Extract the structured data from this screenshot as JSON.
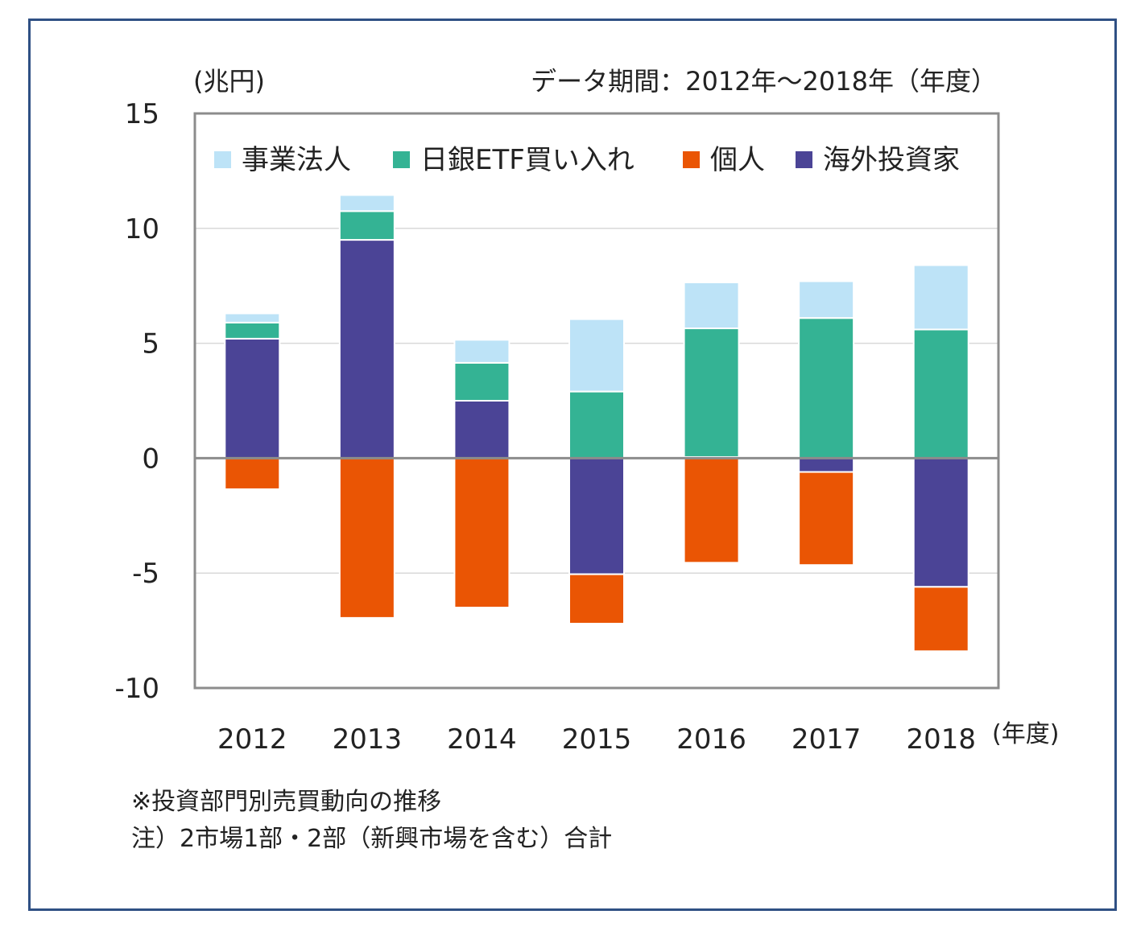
{
  "chart_data": {
    "type": "bar",
    "stacked": true,
    "title": "データ期間：2012年～2018年（年度）",
    "ylabel": "(兆円)",
    "xlabel": "(年度)",
    "categories": [
      "2012",
      "2013",
      "2014",
      "2015",
      "2016",
      "2017",
      "2018"
    ],
    "ylim": [
      -10,
      15
    ],
    "yticks": [
      15,
      10,
      5,
      0,
      -5,
      -10
    ],
    "grid": true,
    "legend_position": "top-inside",
    "series": [
      {
        "name": "事業法人",
        "color": "#bde3f7",
        "values": [
          0.4,
          0.7,
          1.0,
          3.15,
          2.0,
          1.6,
          2.8
        ]
      },
      {
        "name": "日銀ETF買い入れ",
        "color": "#34b394",
        "values": [
          0.7,
          1.25,
          1.65,
          2.9,
          5.6,
          6.1,
          5.6
        ]
      },
      {
        "name": "個人",
        "color": "#ea5504",
        "values": [
          -1.35,
          -6.95,
          -6.5,
          -2.15,
          -4.55,
          -4.05,
          -2.8
        ]
      },
      {
        "name": "海外投資家",
        "color": "#4b4496",
        "values": [
          5.2,
          9.5,
          2.5,
          -5.05,
          0.05,
          -0.6,
          -5.6
        ]
      }
    ],
    "stack_order_positive": [
      "海外投資家",
      "日銀ETF買い入れ",
      "事業法人",
      "個人"
    ],
    "stack_order_negative": [
      "海外投資家",
      "個人",
      "日銀ETF買い入れ",
      "事業法人"
    ]
  },
  "notes": {
    "line1": "※投資部門別売買動向の推移",
    "line2": "注）2市場1部・2部（新興市場を含む）合計"
  },
  "colors": {
    "frame": "#2f5084",
    "axis": "#8c8c8c",
    "grid": "#d9d9d9"
  }
}
